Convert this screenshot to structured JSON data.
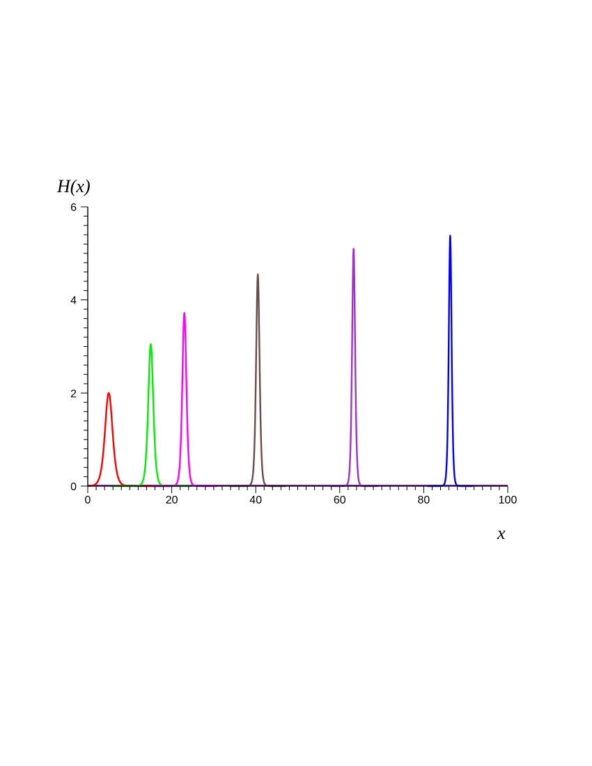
{
  "chart_data": {
    "type": "line",
    "title": "",
    "xlabel": "x",
    "ylabel": "H(x)",
    "xlim": [
      0,
      100
    ],
    "ylim": [
      0,
      6
    ],
    "x_ticks": [
      "0",
      "20",
      "40",
      "60",
      "80",
      "100"
    ],
    "y_ticks": [
      "0",
      "2",
      "4",
      "6"
    ],
    "grid": false,
    "legend": "none",
    "series": [
      {
        "color": "#ff0000",
        "peak_x": 5.0,
        "peak_y": 2.0,
        "sigma": 1.2
      },
      {
        "color": "#00ee00",
        "peak_x": 15.0,
        "peak_y": 3.05,
        "sigma": 0.8
      },
      {
        "color": "#ff00ff",
        "peak_x": 23.0,
        "peak_y": 3.72,
        "sigma": 0.65
      },
      {
        "color": "#6b4c4c",
        "peak_x": 40.5,
        "peak_y": 4.55,
        "sigma": 0.55
      },
      {
        "color": "#a030d0",
        "peak_x": 63.3,
        "peak_y": 5.1,
        "sigma": 0.48
      },
      {
        "color": "#0000ff",
        "peak_x": 86.3,
        "peak_y": 5.38,
        "sigma": 0.45
      }
    ]
  }
}
